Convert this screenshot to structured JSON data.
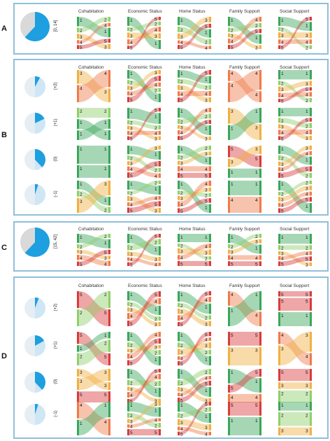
{
  "columns": [
    "Cohabitation",
    "Economic Status",
    "Home Status",
    "Family Support",
    "Social Support"
  ],
  "palette": {
    "1": "#3aa65a",
    "2": "#8fcf6a",
    "3": "#f0b040",
    "4": "#f07a4a",
    "5": "#d93a3a",
    "frame": "#8fbfd9",
    "pie_fill": "#1d9fe0",
    "pie_bg": "#d9d9d9"
  },
  "sections": [
    {
      "letter": "A",
      "rows": [
        {
          "label": "[0, 14]",
          "pie_fraction": 0.62
        }
      ]
    },
    {
      "letter": "B",
      "rows": [
        {
          "label": "(+2)",
          "pie_fraction": 0.08
        },
        {
          "label": "(+1)",
          "pie_fraction": 0.18
        },
        {
          "label": "(0)",
          "pie_fraction": 0.38
        },
        {
          "label": "(-1)",
          "pie_fraction": 0.05
        }
      ]
    },
    {
      "letter": "C",
      "rows": [
        {
          "label": "[15, 42]",
          "pie_fraction": 0.62
        }
      ]
    },
    {
      "letter": "D",
      "rows": [
        {
          "label": "(+2)",
          "pie_fraction": 0.06
        },
        {
          "label": "(+1)",
          "pie_fraction": 0.17
        },
        {
          "label": "(0)",
          "pie_fraction": 0.38
        },
        {
          "label": "(-1)",
          "pie_fraction": 0.05
        }
      ]
    }
  ]
}
